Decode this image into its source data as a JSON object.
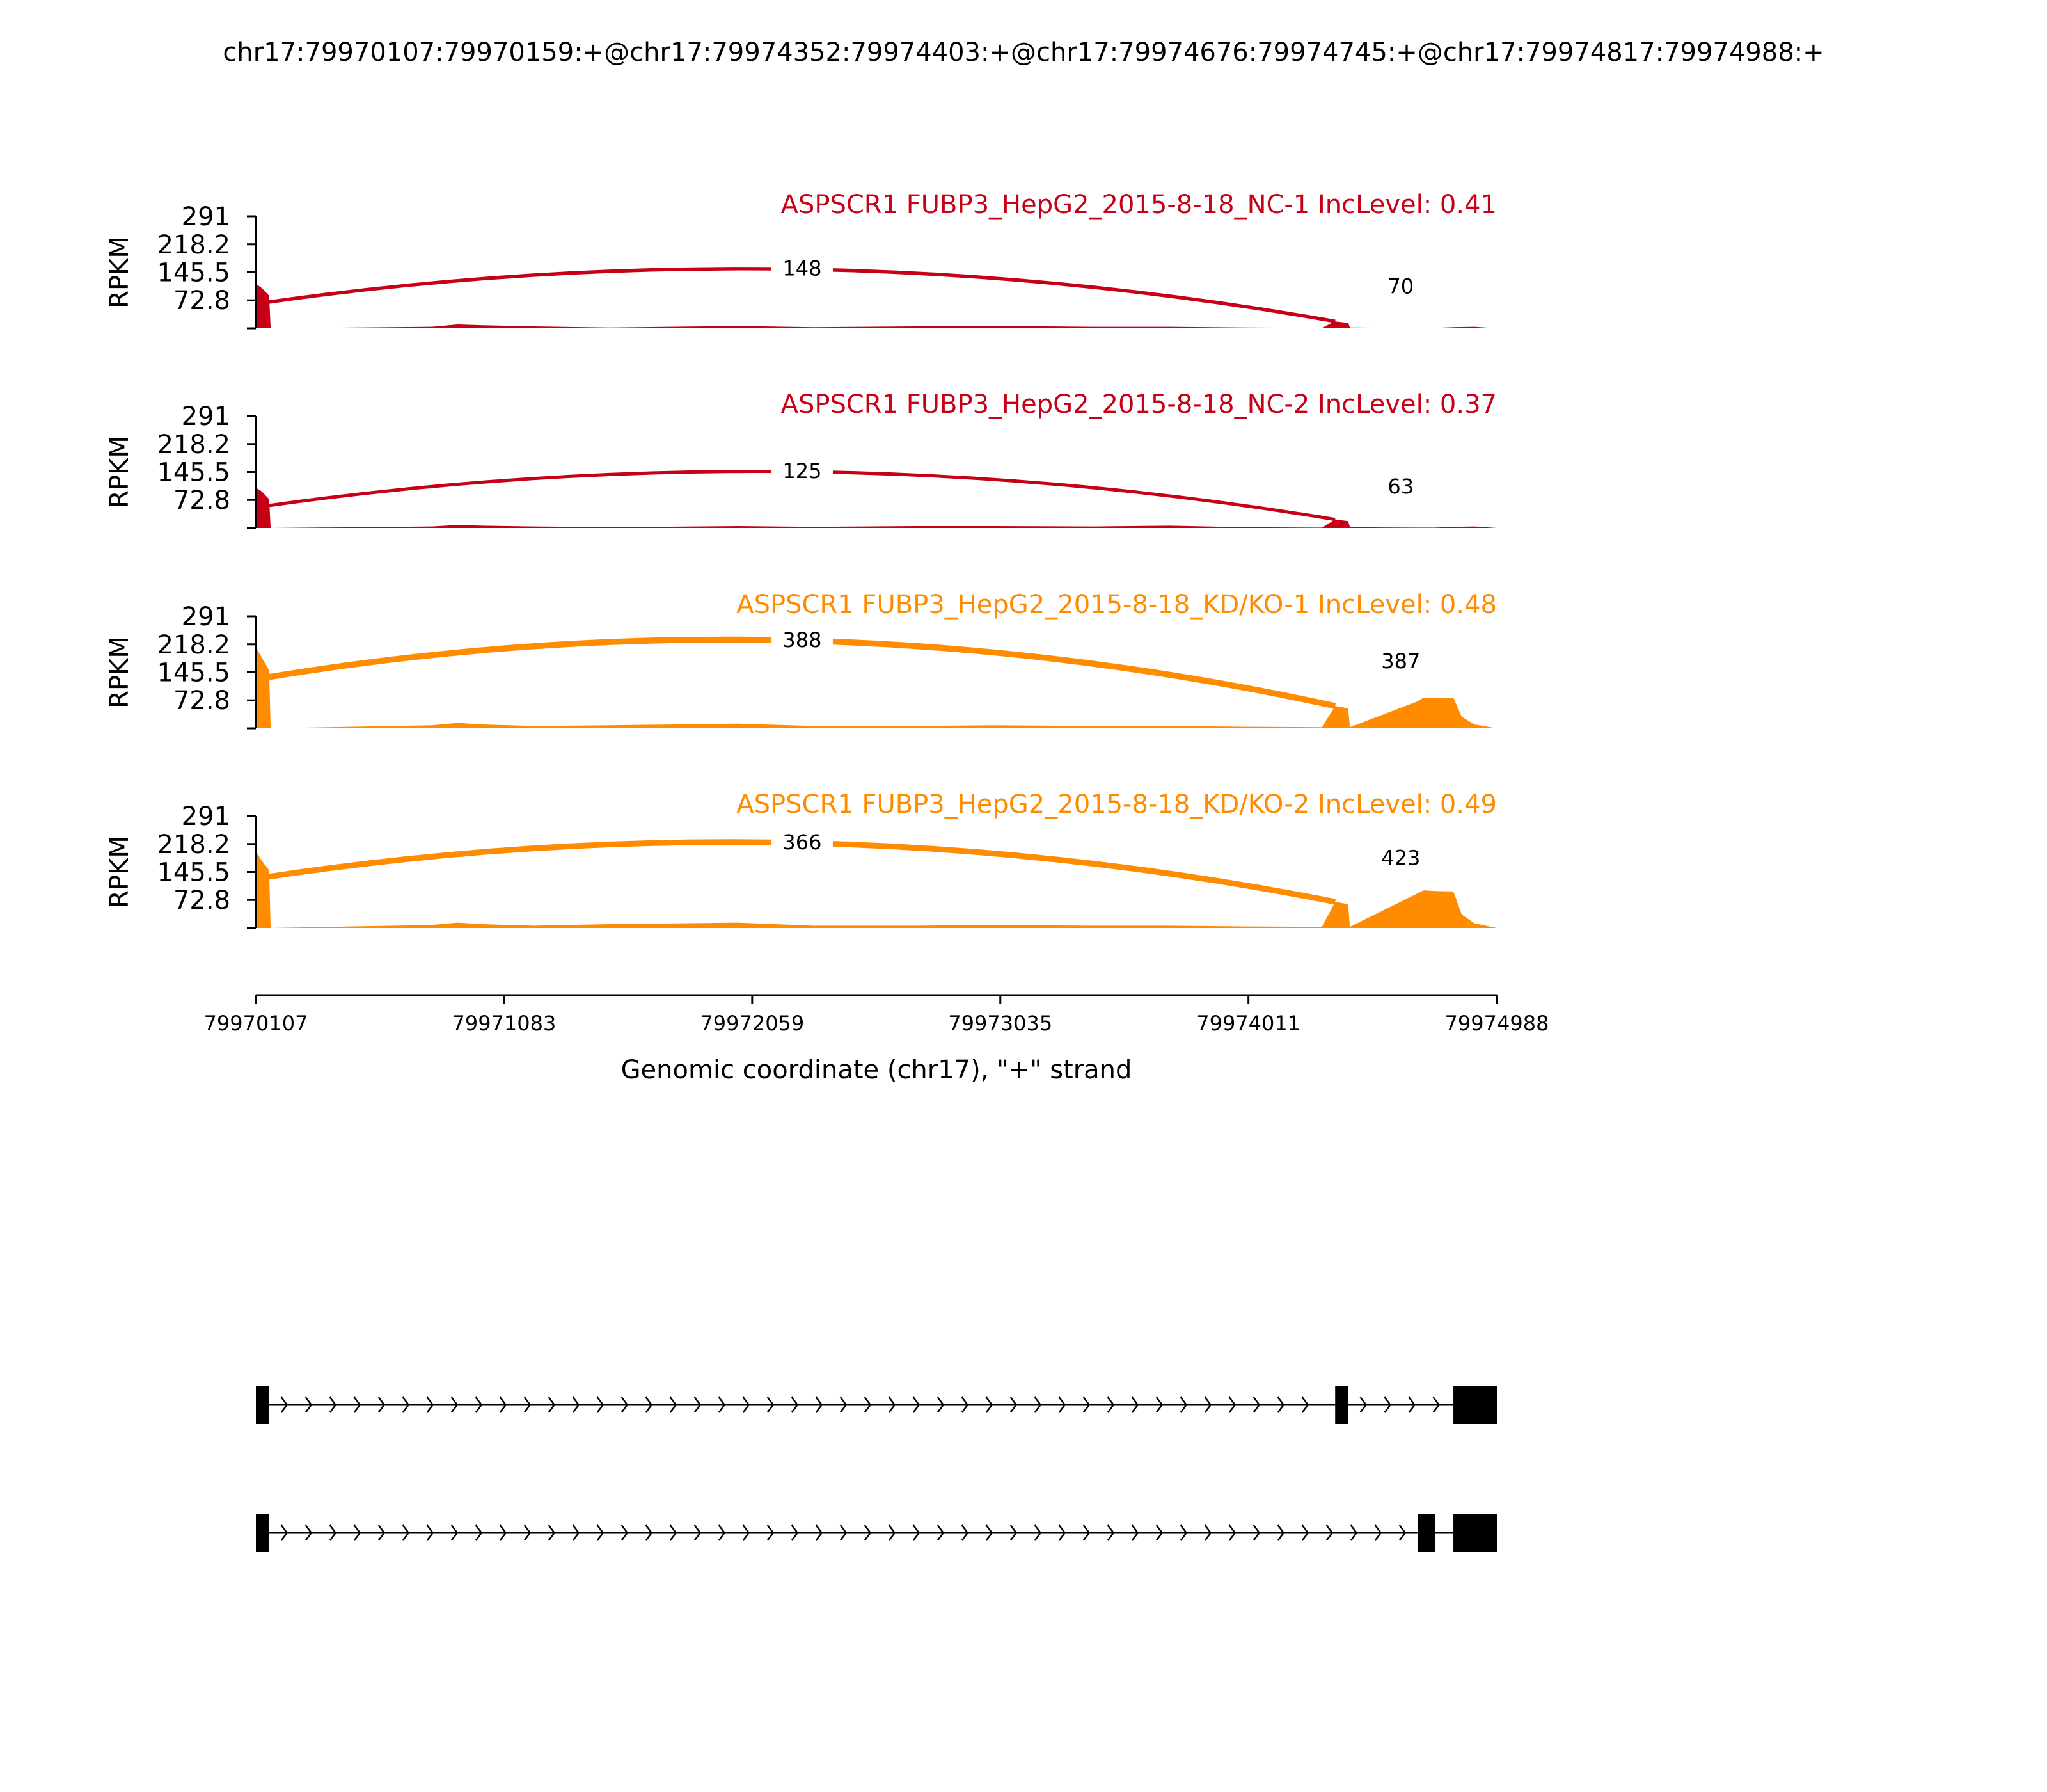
{
  "title": "chr17:79970107:79970159:+@chr17:79974352:79974403:+@chr17:79974676:79974745:+@chr17:79974817:79974988:+",
  "chart_data": {
    "type": "area",
    "title": "chr17:79970107:79970159:+@chr17:79974352:79974403:+@chr17:79974676:79974745:+@chr17:79974817:79974988:+",
    "xlabel": "Genomic coordinate (chr17), \"+\" strand",
    "ylabel": "RPKM",
    "xlim": [
      79970107,
      79974988
    ],
    "ylim": [
      0,
      291
    ],
    "xticks": [
      79970107,
      79971083,
      79972059,
      79973035,
      79974011,
      79974988
    ],
    "xtick_labels": [
      "79970107",
      "79971083",
      "79972059",
      "79973035",
      "79974011",
      "79974988"
    ],
    "yticks": [
      72.8,
      145.5,
      218.2,
      291
    ],
    "ytick_labels": [
      "72.8",
      "145.5",
      "218.2",
      "291"
    ],
    "tracks": [
      {
        "name": "ASPSCR1 FUBP3_HepG2_2015-8-18_NC-1 IncLevel: 0.41",
        "color": "#c80015",
        "junctions": [
          {
            "start": 79970159,
            "end": 79974352,
            "count": "148"
          },
          {
            "start": 79974403,
            "end": 79974817,
            "count": "70"
          }
        ],
        "coverage": [
          [
            79970107,
            115
          ],
          [
            79970130,
            105
          ],
          [
            79970159,
            85
          ],
          [
            79970165,
            0
          ],
          [
            79970800,
            4
          ],
          [
            79970900,
            10
          ],
          [
            79971000,
            8
          ],
          [
            79971200,
            5
          ],
          [
            79971500,
            2
          ],
          [
            79972000,
            6
          ],
          [
            79972300,
            3
          ],
          [
            79972700,
            5
          ],
          [
            79973000,
            6
          ],
          [
            79973400,
            4
          ],
          [
            79973700,
            4
          ],
          [
            79974000,
            2
          ],
          [
            79974300,
            1
          ],
          [
            79974352,
            18
          ],
          [
            79974403,
            14
          ],
          [
            79974410,
            2
          ],
          [
            79974676,
            1
          ],
          [
            79974745,
            1
          ],
          [
            79974817,
            3
          ],
          [
            79974900,
            4
          ],
          [
            79974988,
            0
          ]
        ]
      },
      {
        "name": "ASPSCR1 FUBP3_HepG2_2015-8-18_NC-2 IncLevel: 0.37",
        "color": "#c80015",
        "junctions": [
          {
            "start": 79970159,
            "end": 79974352,
            "count": "125"
          },
          {
            "start": 79974403,
            "end": 79974817,
            "count": "63"
          }
        ],
        "coverage": [
          [
            79970107,
            105
          ],
          [
            79970130,
            95
          ],
          [
            79970159,
            75
          ],
          [
            79970165,
            0
          ],
          [
            79970800,
            4
          ],
          [
            79970900,
            8
          ],
          [
            79971000,
            6
          ],
          [
            79971200,
            4
          ],
          [
            79971500,
            2
          ],
          [
            79972000,
            5
          ],
          [
            79972300,
            3
          ],
          [
            79972700,
            5
          ],
          [
            79973000,
            5
          ],
          [
            79973400,
            4
          ],
          [
            79973700,
            6
          ],
          [
            79974000,
            2
          ],
          [
            79974300,
            1
          ],
          [
            79974352,
            22
          ],
          [
            79974403,
            18
          ],
          [
            79974410,
            2
          ],
          [
            79974676,
            1
          ],
          [
            79974745,
            1
          ],
          [
            79974817,
            3
          ],
          [
            79974900,
            4
          ],
          [
            79974988,
            0
          ]
        ]
      },
      {
        "name": "ASPSCR1 FUBP3_HepG2_2015-8-18_KD/KO-1 IncLevel: 0.48",
        "color": "#ff8c00",
        "junctions": [
          {
            "start": 79970159,
            "end": 79974352,
            "count": "388"
          },
          {
            "start": 79974403,
            "end": 79974817,
            "count": "387"
          }
        ],
        "coverage": [
          [
            79970107,
            210
          ],
          [
            79970130,
            185
          ],
          [
            79970159,
            150
          ],
          [
            79970165,
            0
          ],
          [
            79970800,
            8
          ],
          [
            79970900,
            14
          ],
          [
            79971000,
            10
          ],
          [
            79971200,
            6
          ],
          [
            79971500,
            8
          ],
          [
            79972000,
            12
          ],
          [
            79972300,
            6
          ],
          [
            79972700,
            6
          ],
          [
            79973000,
            8
          ],
          [
            79973400,
            6
          ],
          [
            79973700,
            6
          ],
          [
            79974000,
            4
          ],
          [
            79974300,
            3
          ],
          [
            79974352,
            58
          ],
          [
            79974403,
            52
          ],
          [
            79974410,
            3
          ],
          [
            79974676,
            70
          ],
          [
            79974700,
            80
          ],
          [
            79974745,
            78
          ],
          [
            79974817,
            80
          ],
          [
            79974850,
            30
          ],
          [
            79974900,
            10
          ],
          [
            79974988,
            0
          ]
        ]
      },
      {
        "name": "ASPSCR1 FUBP3_HepG2_2015-8-18_KD/KO-2 IncLevel: 0.49",
        "color": "#ff8c00",
        "junctions": [
          {
            "start": 79970159,
            "end": 79974352,
            "count": "366"
          },
          {
            "start": 79974403,
            "end": 79974817,
            "count": "423"
          }
        ],
        "coverage": [
          [
            79970107,
            200
          ],
          [
            79970130,
            175
          ],
          [
            79970159,
            150
          ],
          [
            79970165,
            0
          ],
          [
            79970800,
            8
          ],
          [
            79970900,
            14
          ],
          [
            79971000,
            10
          ],
          [
            79971200,
            6
          ],
          [
            79971500,
            10
          ],
          [
            79972000,
            14
          ],
          [
            79972300,
            6
          ],
          [
            79972700,
            6
          ],
          [
            79973000,
            8
          ],
          [
            79973400,
            6
          ],
          [
            79973700,
            6
          ],
          [
            79974000,
            4
          ],
          [
            79974300,
            3
          ],
          [
            79974352,
            68
          ],
          [
            79974403,
            62
          ],
          [
            79974410,
            3
          ],
          [
            79974676,
            90
          ],
          [
            79974700,
            98
          ],
          [
            79974745,
            96
          ],
          [
            79974817,
            95
          ],
          [
            79974850,
            35
          ],
          [
            79974900,
            12
          ],
          [
            79974988,
            0
          ]
        ]
      }
    ],
    "isoforms": [
      {
        "exons": [
          [
            79970107,
            79970159
          ],
          [
            79974352,
            79974403
          ],
          [
            79974817,
            79974988
          ]
        ]
      },
      {
        "exons": [
          [
            79970107,
            79970159
          ],
          [
            79974676,
            79974745
          ],
          [
            79974817,
            79974988
          ]
        ]
      }
    ]
  }
}
